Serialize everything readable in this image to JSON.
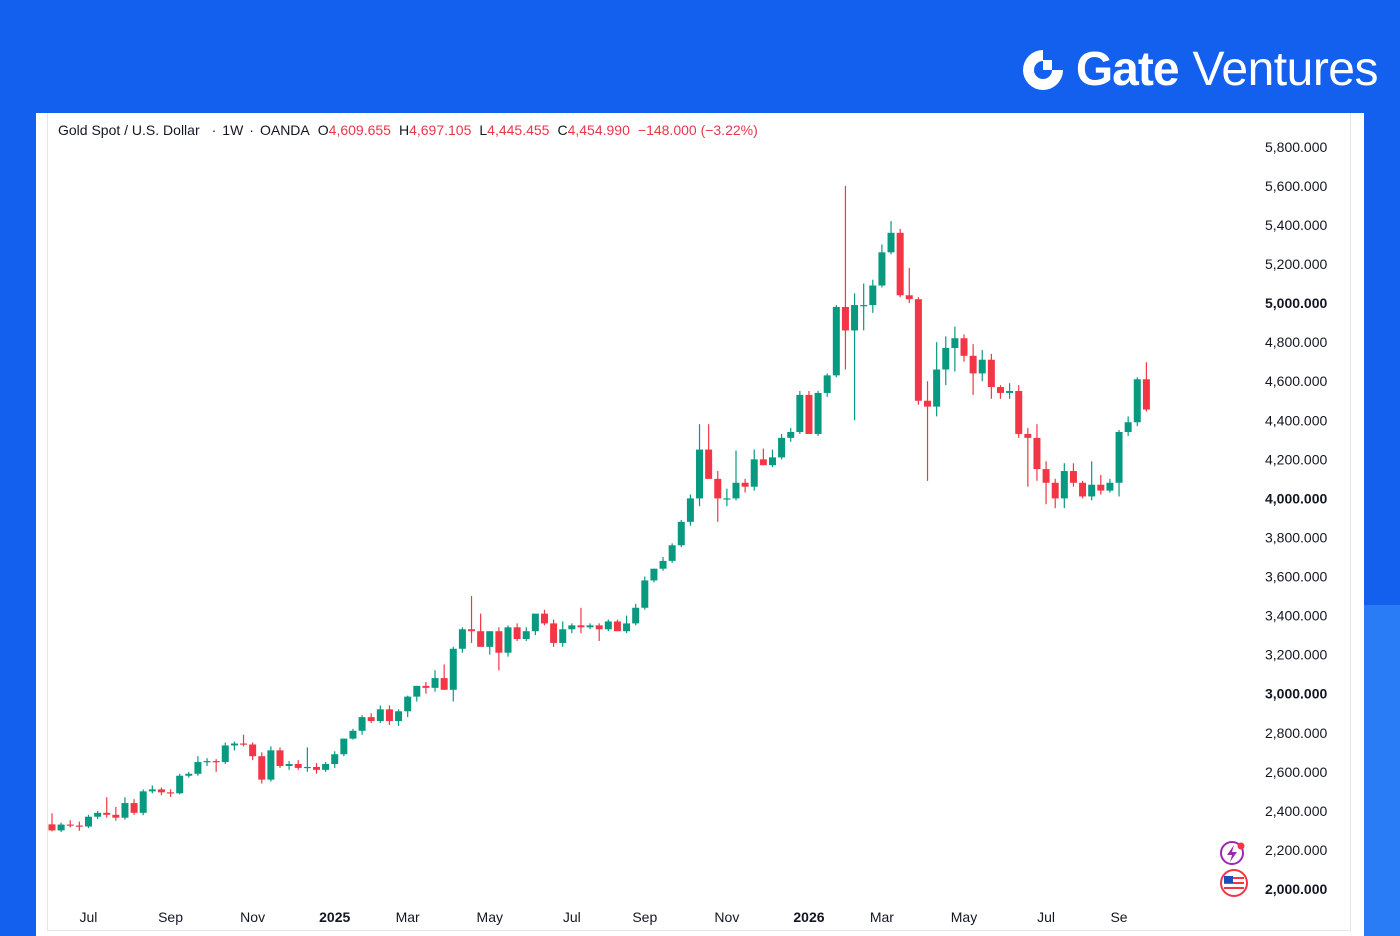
{
  "brand": {
    "main": "Gate",
    "sub": "Ventures",
    "icon": "gate-logo-icon"
  },
  "colors": {
    "background": "#1360ee",
    "up": "#089981",
    "down": "#f23645",
    "text": "#131722"
  },
  "legend": {
    "symbol": "Gold Spot / U.S. Dollar",
    "interval": "1W",
    "source": "OANDA",
    "sep": "·",
    "o_label": "O",
    "o": "4,609.655",
    "h_label": "H",
    "h": "4,697.105",
    "l_label": "L",
    "l": "4,445.455",
    "c_label": "C",
    "c": "4,454.990",
    "change": "−148.000 (−3.22%)"
  },
  "chart_data": {
    "type": "candlestick",
    "interval": "1W",
    "ylim": [
      1970,
      5900
    ],
    "y_ticks": [
      {
        "value": 5800,
        "label": "5,800.000",
        "bold": false
      },
      {
        "value": 5600,
        "label": "5,600.000",
        "bold": false
      },
      {
        "value": 5400,
        "label": "5,400.000",
        "bold": false
      },
      {
        "value": 5200,
        "label": "5,200.000",
        "bold": false
      },
      {
        "value": 5000,
        "label": "5,000.000",
        "bold": true
      },
      {
        "value": 4800,
        "label": "4,800.000",
        "bold": false
      },
      {
        "value": 4600,
        "label": "4,600.000",
        "bold": false
      },
      {
        "value": 4400,
        "label": "4,400.000",
        "bold": false
      },
      {
        "value": 4200,
        "label": "4,200.000",
        "bold": false
      },
      {
        "value": 4000,
        "label": "4,000.000",
        "bold": true
      },
      {
        "value": 3800,
        "label": "3,800.000",
        "bold": false
      },
      {
        "value": 3600,
        "label": "3,600.000",
        "bold": false
      },
      {
        "value": 3400,
        "label": "3,400.000",
        "bold": false
      },
      {
        "value": 3200,
        "label": "3,200.000",
        "bold": false
      },
      {
        "value": 3000,
        "label": "3,000.000",
        "bold": true
      },
      {
        "value": 2800,
        "label": "2,800.000",
        "bold": false
      },
      {
        "value": 2600,
        "label": "2,600.000",
        "bold": false
      },
      {
        "value": 2400,
        "label": "2,400.000",
        "bold": false
      },
      {
        "value": 2200,
        "label": "2,200.000",
        "bold": false
      },
      {
        "value": 2000,
        "label": "2,000.000",
        "bold": true
      }
    ],
    "x_ticks": [
      {
        "index": 4,
        "label": "Jul",
        "bold": false
      },
      {
        "index": 13,
        "label": "Sep",
        "bold": false
      },
      {
        "index": 22,
        "label": "Nov",
        "bold": false
      },
      {
        "index": 31,
        "label": "2025",
        "bold": true
      },
      {
        "index": 39,
        "label": "Mar",
        "bold": false
      },
      {
        "index": 48,
        "label": "May",
        "bold": false
      },
      {
        "index": 57,
        "label": "Jul",
        "bold": false
      },
      {
        "index": 65,
        "label": "Sep",
        "bold": false
      },
      {
        "index": 74,
        "label": "Nov",
        "bold": false
      },
      {
        "index": 83,
        "label": "2026",
        "bold": true
      },
      {
        "index": 91,
        "label": "Mar",
        "bold": false
      },
      {
        "index": 100,
        "label": "May",
        "bold": false
      },
      {
        "index": 109,
        "label": "Jul",
        "bold": false
      },
      {
        "index": 117,
        "label": "Se",
        "bold": false
      }
    ],
    "ohlc": [
      [
        2331,
        2388,
        2295,
        2300
      ],
      [
        2300,
        2340,
        2292,
        2330
      ],
      [
        2330,
        2352,
        2315,
        2325
      ],
      [
        2325,
        2345,
        2298,
        2320
      ],
      [
        2320,
        2380,
        2312,
        2370
      ],
      [
        2370,
        2400,
        2358,
        2390
      ],
      [
        2390,
        2470,
        2365,
        2380
      ],
      [
        2380,
        2420,
        2350,
        2365
      ],
      [
        2365,
        2470,
        2355,
        2440
      ],
      [
        2440,
        2460,
        2380,
        2390
      ],
      [
        2390,
        2510,
        2378,
        2500
      ],
      [
        2500,
        2530,
        2490,
        2510
      ],
      [
        2510,
        2520,
        2480,
        2495
      ],
      [
        2495,
        2510,
        2472,
        2490
      ],
      [
        2490,
        2590,
        2485,
        2580
      ],
      [
        2580,
        2600,
        2570,
        2590
      ],
      [
        2590,
        2680,
        2580,
        2650
      ],
      [
        2650,
        2670,
        2630,
        2655
      ],
      [
        2655,
        2665,
        2600,
        2650
      ],
      [
        2650,
        2750,
        2640,
        2735
      ],
      [
        2735,
        2755,
        2710,
        2745
      ],
      [
        2745,
        2790,
        2730,
        2740
      ],
      [
        2740,
        2750,
        2660,
        2680
      ],
      [
        2680,
        2700,
        2540,
        2560
      ],
      [
        2560,
        2730,
        2550,
        2710
      ],
      [
        2710,
        2725,
        2620,
        2630
      ],
      [
        2630,
        2655,
        2610,
        2640
      ],
      [
        2640,
        2660,
        2610,
        2620
      ],
      [
        2620,
        2725,
        2600,
        2625
      ],
      [
        2625,
        2645,
        2590,
        2610
      ],
      [
        2610,
        2650,
        2600,
        2640
      ],
      [
        2640,
        2705,
        2620,
        2690
      ],
      [
        2690,
        2770,
        2680,
        2770
      ],
      [
        2770,
        2820,
        2765,
        2810
      ],
      [
        2810,
        2890,
        2790,
        2880
      ],
      [
        2880,
        2900,
        2850,
        2860
      ],
      [
        2860,
        2940,
        2850,
        2920
      ],
      [
        2920,
        2940,
        2840,
        2860
      ],
      [
        2860,
        2920,
        2835,
        2910
      ],
      [
        2910,
        2990,
        2880,
        2985
      ],
      [
        2985,
        3040,
        2960,
        3040
      ],
      [
        3040,
        3060,
        3000,
        3030
      ],
      [
        3030,
        3120,
        3010,
        3080
      ],
      [
        3080,
        3150,
        3020,
        3020
      ],
      [
        3020,
        3240,
        2960,
        3230
      ],
      [
        3230,
        3340,
        3210,
        3330
      ],
      [
        3330,
        3500,
        3260,
        3320
      ],
      [
        3320,
        3410,
        3260,
        3240
      ],
      [
        3240,
        3320,
        3200,
        3320
      ],
      [
        3320,
        3340,
        3120,
        3210
      ],
      [
        3210,
        3350,
        3190,
        3340
      ],
      [
        3340,
        3360,
        3270,
        3280
      ],
      [
        3280,
        3340,
        3270,
        3320
      ],
      [
        3320,
        3400,
        3300,
        3410
      ],
      [
        3410,
        3430,
        3350,
        3360
      ],
      [
        3360,
        3380,
        3240,
        3260
      ],
      [
        3260,
        3370,
        3240,
        3330
      ],
      [
        3330,
        3360,
        3310,
        3350
      ],
      [
        3350,
        3440,
        3310,
        3340
      ],
      [
        3340,
        3360,
        3330,
        3350
      ],
      [
        3350,
        3360,
        3270,
        3330
      ],
      [
        3330,
        3380,
        3320,
        3370
      ],
      [
        3370,
        3380,
        3320,
        3320
      ],
      [
        3320,
        3400,
        3310,
        3360
      ],
      [
        3360,
        3460,
        3350,
        3440
      ],
      [
        3440,
        3600,
        3430,
        3580
      ],
      [
        3580,
        3640,
        3570,
        3640
      ],
      [
        3640,
        3700,
        3630,
        3680
      ],
      [
        3680,
        3770,
        3670,
        3760
      ],
      [
        3760,
        3890,
        3750,
        3880
      ],
      [
        3880,
        4020,
        3860,
        4000
      ],
      [
        4000,
        4380,
        3960,
        4250
      ],
      [
        4250,
        4380,
        4100,
        4100
      ],
      [
        4100,
        4140,
        3880,
        4000
      ],
      [
        4000,
        4050,
        3960,
        4000
      ],
      [
        4000,
        4245,
        3990,
        4080
      ],
      [
        4080,
        4100,
        4030,
        4060
      ],
      [
        4060,
        4250,
        4040,
        4200
      ],
      [
        4200,
        4255,
        4170,
        4170
      ],
      [
        4170,
        4250,
        4160,
        4210
      ],
      [
        4210,
        4330,
        4200,
        4310
      ],
      [
        4310,
        4360,
        4290,
        4340
      ],
      [
        4340,
        4550,
        4330,
        4530
      ],
      [
        4530,
        4550,
        4330,
        4330
      ],
      [
        4330,
        4550,
        4320,
        4540
      ],
      [
        4540,
        4640,
        4520,
        4630
      ],
      [
        4630,
        4990,
        4620,
        4980
      ],
      [
        4980,
        5600,
        4660,
        4860
      ],
      [
        4860,
        5050,
        4400,
        4990
      ],
      [
        4990,
        5100,
        4860,
        4990
      ],
      [
        4990,
        5120,
        4950,
        5090
      ],
      [
        5090,
        5300,
        5080,
        5260
      ],
      [
        5260,
        5420,
        5250,
        5360
      ],
      [
        5360,
        5380,
        5030,
        5040
      ],
      [
        5040,
        5180,
        5000,
        5020
      ],
      [
        5020,
        5030,
        4480,
        4500
      ],
      [
        4500,
        4600,
        4090,
        4470
      ],
      [
        4470,
        4800,
        4420,
        4660
      ],
      [
        4660,
        4830,
        4580,
        4770
      ],
      [
        4770,
        4880,
        4650,
        4820
      ],
      [
        4820,
        4840,
        4700,
        4730
      ],
      [
        4730,
        4790,
        4530,
        4640
      ],
      [
        4640,
        4760,
        4600,
        4710
      ],
      [
        4710,
        4740,
        4510,
        4570
      ],
      [
        4570,
        4580,
        4510,
        4540
      ],
      [
        4540,
        4590,
        4510,
        4550
      ],
      [
        4550,
        4580,
        4310,
        4330
      ],
      [
        4330,
        4360,
        4060,
        4310
      ],
      [
        4310,
        4380,
        4090,
        4150
      ],
      [
        4150,
        4190,
        3970,
        4080
      ],
      [
        4080,
        4100,
        3950,
        4000
      ],
      [
        4000,
        4180,
        3950,
        4140
      ],
      [
        4140,
        4180,
        4060,
        4080
      ],
      [
        4080,
        4090,
        4000,
        4010
      ],
      [
        4010,
        4190,
        3990,
        4070
      ],
      [
        4070,
        4120,
        4020,
        4040
      ],
      [
        4040,
        4100,
        4030,
        4080
      ],
      [
        4080,
        4350,
        4010,
        4340
      ],
      [
        4340,
        4420,
        4320,
        4390
      ],
      [
        4390,
        4620,
        4370,
        4610
      ],
      [
        4610,
        4697,
        4445,
        4455
      ]
    ]
  }
}
